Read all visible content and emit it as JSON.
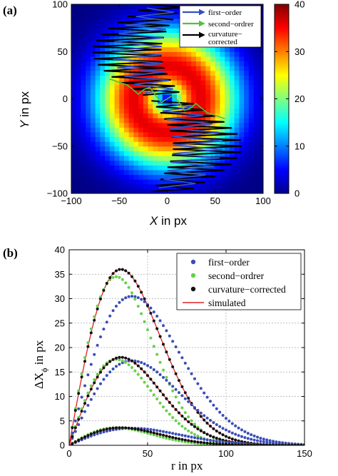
{
  "panel_a": {
    "label": "(a)",
    "xlabel_var": "X",
    "xlabel_rest": " in px",
    "ylabel_var": "Y",
    "ylabel_rest": " in px",
    "xticks": [
      "−100",
      "−50",
      "0",
      "50",
      "100"
    ],
    "yticks": [
      "100",
      "50",
      "0",
      "−50",
      "−100"
    ],
    "colorbar_ticks": [
      "40",
      "30",
      "20",
      "10",
      "0"
    ],
    "legend": [
      {
        "label": "first−order",
        "color": "#3050c8"
      },
      {
        "label": "second−ordrer",
        "color": "#55c040"
      },
      {
        "label": "curvature−",
        "label2": "corrected",
        "color": "#000000"
      }
    ]
  },
  "panel_b": {
    "label": "(b)",
    "xlabel": "r in px",
    "ylabel_main": "ΔX",
    "ylabel_sub": "ϕ",
    "ylabel_rest": " in px",
    "xticks": [
      "0",
      "50",
      "100",
      "150"
    ],
    "yticks": [
      "40",
      "35",
      "30",
      "25",
      "20",
      "15",
      "10",
      "5",
      "0"
    ],
    "legend": [
      {
        "label": "first−order",
        "color": "#3a4db8"
      },
      {
        "label": "second−ordrer",
        "color": "#66d04a"
      },
      {
        "label": "curvature−corrected",
        "color": "#111111"
      },
      {
        "label": "simulated",
        "color": "#e02020"
      }
    ]
  },
  "chart_data": [
    {
      "type": "heatmap",
      "title": "",
      "xlabel": "X in px",
      "ylabel": "Y in px",
      "xlim": [
        -100,
        100
      ],
      "ylim": [
        -100,
        100
      ],
      "colorbar_range": [
        0,
        40
      ],
      "colormap": "jet",
      "description_peak_radius_px": 35,
      "series": [
        {
          "name": "first−order",
          "color": "#3050c8"
        },
        {
          "name": "second−ordrer",
          "color": "#55c040"
        },
        {
          "name": "curvature−corrected",
          "color": "#000000"
        }
      ]
    },
    {
      "type": "scatter",
      "title": "",
      "xlabel": "r in px",
      "ylabel": "ΔXϕ in px",
      "xlim": [
        0,
        150
      ],
      "ylim": [
        0,
        40
      ],
      "grid": true,
      "legend_position": "top-right",
      "groups": [
        {
          "amplitude": 36,
          "peak_r": 33
        },
        {
          "amplitude": 18,
          "peak_r": 33
        },
        {
          "amplitude": 3.6,
          "peak_r": 33
        }
      ],
      "series": [
        {
          "name": "first−order",
          "color": "#3a4db8",
          "peak_values": [
            30.5,
            17.3,
            3.5
          ],
          "peak_r": 40
        },
        {
          "name": "second−ordrer",
          "color": "#66d04a",
          "peak_values": [
            34.5,
            17.6,
            3.6
          ],
          "peak_r": 30
        },
        {
          "name": "curvature−corrected",
          "color": "#111111",
          "peak_values": [
            36,
            18,
            3.6
          ],
          "peak_r": 33
        },
        {
          "name": "simulated",
          "color": "#e02020",
          "peak_values": [
            36,
            18,
            3.6
          ],
          "peak_r": 33
        }
      ]
    }
  ]
}
